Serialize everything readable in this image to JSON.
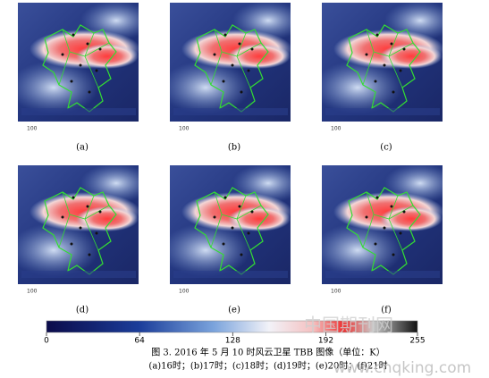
{
  "figure": {
    "panels": [
      {
        "label": "(a)",
        "axis_label": "100"
      },
      {
        "label": "(b)",
        "axis_label": "100"
      },
      {
        "label": "(c)",
        "axis_label": "100"
      },
      {
        "label": "(d)",
        "axis_label": "100"
      },
      {
        "label": "(e)",
        "axis_label": "100"
      },
      {
        "label": "(f)",
        "axis_label": "100"
      }
    ],
    "colorbar": {
      "lim": [
        0,
        255
      ],
      "ticks": [
        0,
        64,
        128,
        192,
        255
      ]
    },
    "caption": "图 3.  2016 年 5 月 10 时风云卫星 TBB 图像（单位：K）",
    "subcaption": "(a)16时；(b)17时；(c)18时；(d)19时；(e)20时；(f)21时"
  },
  "watermark": {
    "text": "中国期刊网",
    "url": "www.cnqking.com"
  }
}
